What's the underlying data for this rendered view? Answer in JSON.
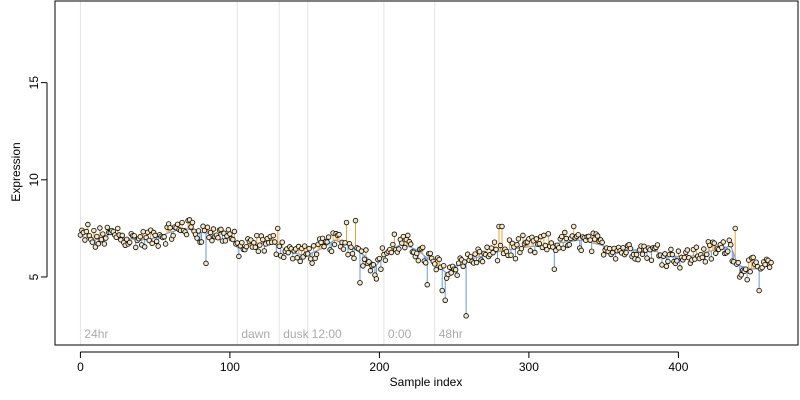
{
  "chart_data": {
    "type": "scatter",
    "xlabel": "Sample index",
    "ylabel": "Expression",
    "xlim": [
      -17,
      480
    ],
    "ylim": [
      1.5,
      19.2
    ],
    "x_ticks": [
      0,
      100,
      200,
      300,
      400
    ],
    "y_ticks": [
      5,
      10,
      15
    ],
    "grid": false,
    "baseline_color": "#6699dd",
    "above_color": "#f0a030",
    "below_color": "#6699dd",
    "point_fill": "#f6e6c2",
    "markers": [
      {
        "label": "24hr",
        "x": 0
      },
      {
        "label": "dawn",
        "x": 105
      },
      {
        "label": "dusk",
        "x": 133
      },
      {
        "label": "12:00",
        "x": 152
      },
      {
        "label": "0:00",
        "x": 203
      },
      {
        "label": "48hr",
        "x": 237
      }
    ],
    "anchors": [
      [
        0,
        7.1
      ],
      [
        10,
        6.9
      ],
      [
        20,
        7.2
      ],
      [
        30,
        7.0
      ],
      [
        40,
        6.9
      ],
      [
        50,
        7.0
      ],
      [
        60,
        7.3
      ],
      [
        70,
        7.5
      ],
      [
        80,
        7.3
      ],
      [
        90,
        7.2
      ],
      [
        100,
        7.2
      ],
      [
        105,
        6.5
      ],
      [
        115,
        6.6
      ],
      [
        125,
        6.8
      ],
      [
        133,
        6.6
      ],
      [
        140,
        6.3
      ],
      [
        150,
        6.1
      ],
      [
        160,
        6.4
      ],
      [
        170,
        6.9
      ],
      [
        180,
        6.6
      ],
      [
        190,
        6.1
      ],
      [
        198,
        5.6
      ],
      [
        205,
        6.3
      ],
      [
        215,
        6.7
      ],
      [
        225,
        6.4
      ],
      [
        235,
        5.8
      ],
      [
        245,
        5.2
      ],
      [
        255,
        5.8
      ],
      [
        265,
        6.0
      ],
      [
        275,
        6.2
      ],
      [
        285,
        6.4
      ],
      [
        295,
        6.5
      ],
      [
        305,
        6.6
      ],
      [
        315,
        6.7
      ],
      [
        325,
        6.8
      ],
      [
        335,
        6.9
      ],
      [
        345,
        6.7
      ],
      [
        355,
        6.5
      ],
      [
        365,
        6.4
      ],
      [
        375,
        6.4
      ],
      [
        385,
        6.3
      ],
      [
        395,
        6.1
      ],
      [
        405,
        6.0
      ],
      [
        415,
        6.2
      ],
      [
        425,
        6.4
      ],
      [
        435,
        6.6
      ],
      [
        440,
        5.6
      ],
      [
        450,
        5.4
      ],
      [
        462,
        5.6
      ]
    ],
    "outliers": [
      [
        5,
        7.7
      ],
      [
        25,
        7.5
      ],
      [
        68,
        7.8
      ],
      [
        72,
        7.9
      ],
      [
        75,
        7.8
      ],
      [
        84,
        5.7
      ],
      [
        132,
        7.5
      ],
      [
        178,
        7.8
      ],
      [
        184,
        7.9
      ],
      [
        187,
        4.7
      ],
      [
        198,
        4.9
      ],
      [
        210,
        7.2
      ],
      [
        232,
        4.6
      ],
      [
        242,
        4.3
      ],
      [
        244,
        3.8
      ],
      [
        258,
        3.0
      ],
      [
        280,
        7.6
      ],
      [
        282,
        7.6
      ],
      [
        317,
        5.4
      ],
      [
        330,
        7.6
      ],
      [
        438,
        7.5
      ],
      [
        441,
        5.0
      ],
      [
        454,
        4.3
      ]
    ]
  }
}
